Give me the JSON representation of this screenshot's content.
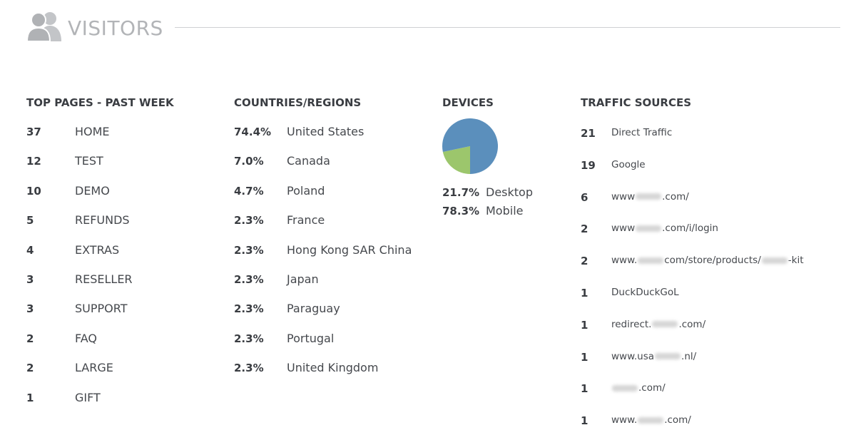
{
  "header": {
    "title": "VISITORS"
  },
  "top_pages": {
    "title": "TOP PAGES - PAST WEEK",
    "rows": [
      {
        "count": 37,
        "page": "HOME"
      },
      {
        "count": 12,
        "page": "TEST"
      },
      {
        "count": 10,
        "page": "DEMO"
      },
      {
        "count": 5,
        "page": "REFUNDS"
      },
      {
        "count": 4,
        "page": "EXTRAS"
      },
      {
        "count": 3,
        "page": "RESELLER"
      },
      {
        "count": 3,
        "page": "SUPPORT"
      },
      {
        "count": 2,
        "page": "FAQ"
      },
      {
        "count": 2,
        "page": "LARGE"
      },
      {
        "count": 1,
        "page": "GIFT"
      }
    ]
  },
  "countries": {
    "title": "COUNTRIES/REGIONS",
    "rows": [
      {
        "share": "74.4%",
        "name": "United States"
      },
      {
        "share": "7.0%",
        "name": "Canada"
      },
      {
        "share": "4.7%",
        "name": "Poland"
      },
      {
        "share": "2.3%",
        "name": "France"
      },
      {
        "share": "2.3%",
        "name": "Hong Kong SAR China"
      },
      {
        "share": "2.3%",
        "name": "Japan"
      },
      {
        "share": "2.3%",
        "name": "Paraguay"
      },
      {
        "share": "2.3%",
        "name": "Portugal"
      },
      {
        "share": "2.3%",
        "name": "United Kingdom"
      }
    ]
  },
  "devices": {
    "title": "DEVICES",
    "type": "pie",
    "slices": [
      {
        "name": "Desktop",
        "value": 21.7,
        "label": "21.7%",
        "color": "#9cc66c"
      },
      {
        "name": "Mobile",
        "value": 78.3,
        "label": "78.3%",
        "color": "#5b8fbc"
      }
    ]
  },
  "traffic_sources": {
    "title": "TRAFFIC SOURCES",
    "rows": [
      {
        "count": 21,
        "segments": [
          "Direct Traffic"
        ]
      },
      {
        "count": 19,
        "segments": [
          "Google"
        ]
      },
      {
        "count": 6,
        "segments": [
          "www",
          null,
          ".com/"
        ]
      },
      {
        "count": 2,
        "segments": [
          "www",
          null,
          ".com/i/login"
        ]
      },
      {
        "count": 2,
        "segments": [
          "www.",
          null,
          "com/store/products/",
          null,
          "-kit"
        ]
      },
      {
        "count": 1,
        "segments": [
          "DuckDuckGoL"
        ]
      },
      {
        "count": 1,
        "segments": [
          "redirect.",
          null,
          ".com/"
        ]
      },
      {
        "count": 1,
        "segments": [
          "www.usa",
          null,
          ".nl/"
        ]
      },
      {
        "count": 1,
        "segments": [
          null,
          ".com/"
        ]
      },
      {
        "count": 1,
        "segments": [
          "www.",
          null,
          ".com/"
        ]
      }
    ]
  }
}
